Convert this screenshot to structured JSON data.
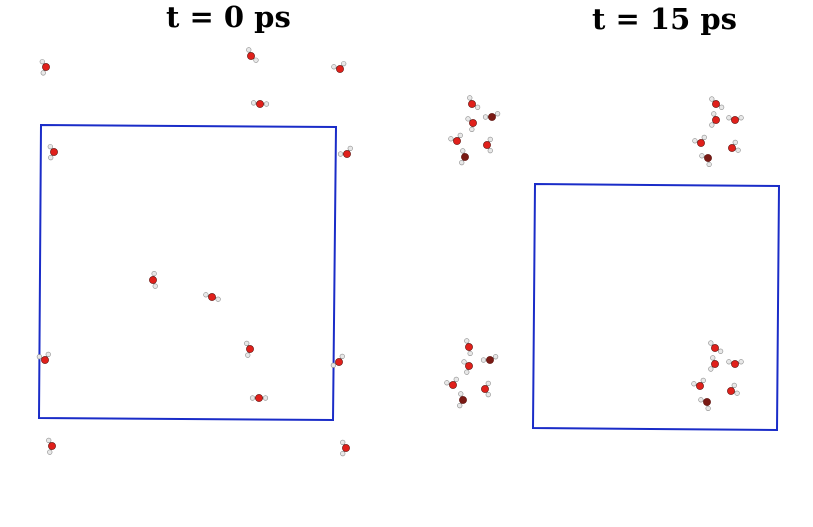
{
  "panels": [
    {
      "title": "t = 0 ps"
    },
    {
      "title": "t = 15 ps"
    }
  ],
  "colors": {
    "background": "#ffffff",
    "box_edge": "#1a2cc8",
    "oxygen": "#e0201b",
    "oxygen_dark": "#7a1a14",
    "hydrogen": "#e8e8e8",
    "hydrogen_edge": "#8a8a8a"
  }
}
